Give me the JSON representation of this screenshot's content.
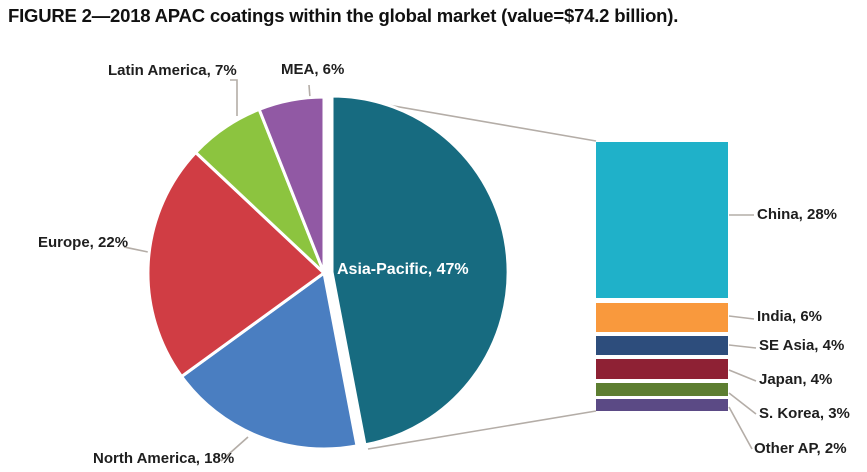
{
  "figure": {
    "title": "FIGURE 2—2018 APAC coatings within the global market (value=$74.2 billion)."
  },
  "chart_data": {
    "type": "pie",
    "title": "FIGURE 2—2018 APAC coatings within the global market (value=$74.2 billion).",
    "total_value_label": "$74.2 billion",
    "legend_position": "labels-on-chart",
    "pie": {
      "segments": [
        {
          "slug": "asia-pacific",
          "label": "Asia-Pacific",
          "value": 47,
          "display": "Asia-Pacific, 47%",
          "color": "#176b80",
          "exploded": true
        },
        {
          "slug": "north-america",
          "label": "North America",
          "value": 18,
          "display": "North America, 18%",
          "color": "#4a7ec1",
          "exploded": false
        },
        {
          "slug": "europe",
          "label": "Europe",
          "value": 22,
          "display": "Europe, 22%",
          "color": "#d03d44",
          "exploded": false
        },
        {
          "slug": "latin-america",
          "label": "Latin America",
          "value": 7,
          "display": "Latin America, 7%",
          "color": "#8cc43f",
          "exploded": false
        },
        {
          "slug": "mea",
          "label": "MEA",
          "value": 6,
          "display": "MEA, 6%",
          "color": "#9159a4",
          "exploded": false
        }
      ]
    },
    "bar": {
      "segments": [
        {
          "slug": "china",
          "label": "China",
          "value": 28,
          "display": "China, 28%",
          "color": "#1fb1c9"
        },
        {
          "slug": "india",
          "label": "India",
          "value": 6,
          "display": "India, 6%",
          "color": "#f9993d"
        },
        {
          "slug": "se-asia",
          "label": "SE Asia",
          "value": 4,
          "display": "SE Asia, 4%",
          "color": "#2d4d7c"
        },
        {
          "slug": "japan",
          "label": "Japan",
          "value": 4,
          "display": "Japan, 4%",
          "color": "#8e2134"
        },
        {
          "slug": "s-korea",
          "label": "S. Korea",
          "value": 3,
          "display": "S. Korea, 3%",
          "color": "#5d7e31"
        },
        {
          "slug": "other-ap",
          "label": "Other AP",
          "value": 2,
          "display": "Other AP, 2%",
          "color": "#5b4a85"
        }
      ]
    },
    "connector_line_color": "#b4ada7"
  }
}
